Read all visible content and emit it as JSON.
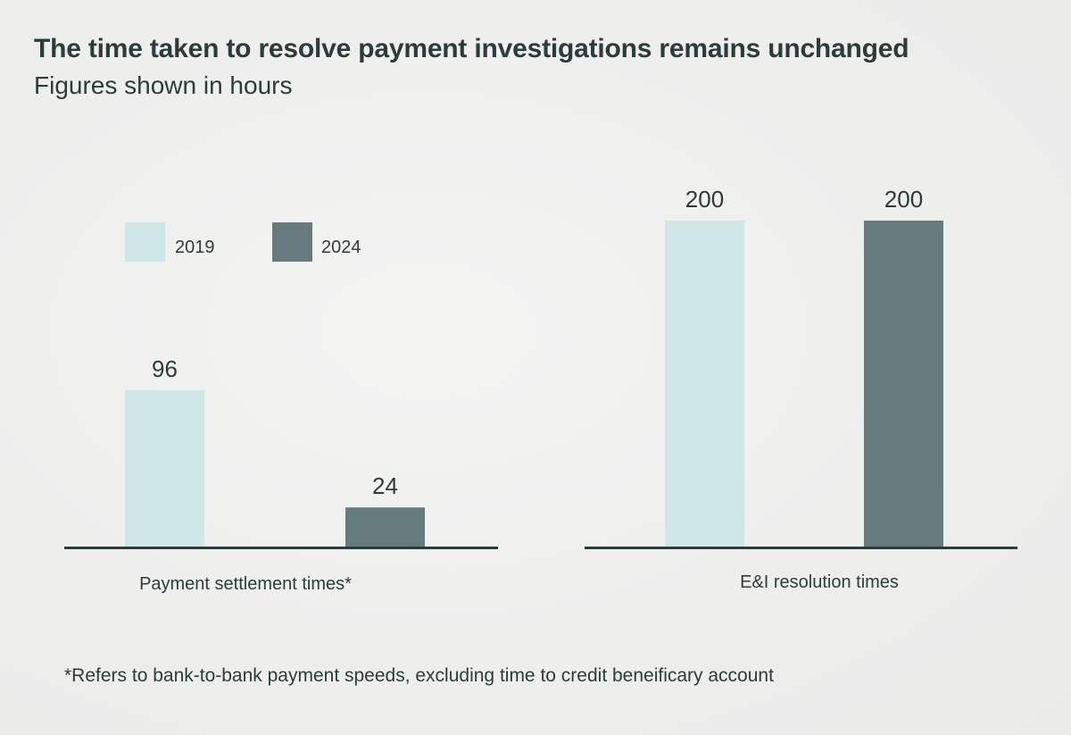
{
  "title": "The time taken to resolve payment investigations remains unchanged",
  "subtitle": "Figures shown in hours",
  "footnote": "*Refers to bank-to-bank payment speeds, excluding time to credit beneificary account",
  "colors": {
    "2019": "#cfe8e7",
    "2024": "#657b7e",
    "axis": "#2e3b3b",
    "text": "#2e3b3b"
  },
  "chart_data": [
    {
      "type": "bar",
      "categories": [
        "Payment settlement times*"
      ],
      "series": [
        {
          "name": "2019",
          "values": [
            96
          ]
        },
        {
          "name": "2024",
          "values": [
            24
          ]
        }
      ],
      "ylim": [
        0,
        200
      ],
      "legend": "top-left",
      "grid": false
    },
    {
      "type": "bar",
      "categories": [
        "E&I resolution times"
      ],
      "series": [
        {
          "name": "2019",
          "values": [
            200
          ]
        },
        {
          "name": "2024",
          "values": [
            200
          ]
        }
      ],
      "ylim": [
        0,
        200
      ],
      "grid": false
    }
  ]
}
